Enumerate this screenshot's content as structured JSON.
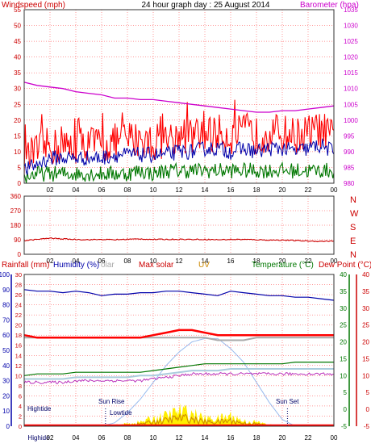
{
  "title": "24 hour graph day : 25 August 2014",
  "colors": {
    "wind": "#ff0000",
    "gust": "#0000aa",
    "avgwind": "#007700",
    "baro": "#cc00cc",
    "dir": "#cc0000",
    "hum": "#0000aa",
    "solar": "#aaaaaa",
    "maxsolar": "#ff0000",
    "uv": "#cc8800",
    "temp": "#007700",
    "dew": "#cc0000",
    "grid": "#ff0000",
    "pressure": "#cc00cc",
    "rain": "#ff0000",
    "solarcurve": "#99bbee",
    "sunfill": "#ffee00"
  },
  "panel1": {
    "left_label": "Windspeed (mph)",
    "right_label": "Barometer (hpa)",
    "y_left_ticks": [
      "0",
      "5",
      "10",
      "15",
      "20",
      "25",
      "30",
      "35",
      "40",
      "45",
      "50",
      "55"
    ],
    "y_right_ticks": [
      "980",
      "985",
      "990",
      "995",
      "1000",
      "1005",
      "1010",
      "1015",
      "1020",
      "1025",
      "1030",
      "1035"
    ],
    "x_ticks": [
      "02",
      "04",
      "06",
      "08",
      "10",
      "12",
      "14",
      "16",
      "18",
      "20",
      "22",
      "00"
    ]
  },
  "panel2": {
    "y_ticks": [
      "0",
      "90",
      "180",
      "270",
      "360"
    ],
    "compass": [
      "N",
      "W",
      "S",
      "E",
      "N"
    ],
    "x_ticks": [
      "02",
      "04",
      "06",
      "08",
      "10",
      "12",
      "14",
      "16",
      "18",
      "20",
      "22",
      "00"
    ]
  },
  "panel3": {
    "label_rain": "Rainfall (mm)",
    "label_humidity": "Humidity (%)",
    "label_solar": "olar",
    "label_maxsolar": "Max solar",
    "label_uv": "UV",
    "label_temp": "Temperature (°C)",
    "label_dew": "Dew Point (°C)",
    "y_hum_ticks": [
      "0",
      "10",
      "20",
      "30",
      "40",
      "50",
      "60",
      "70",
      "80",
      "90",
      "100"
    ],
    "y_rain_ticks": [
      "0",
      "2",
      "4",
      "6",
      "8",
      "10",
      "12",
      "14",
      "16",
      "18",
      "20",
      "22",
      "24",
      "26",
      "28",
      "30"
    ],
    "y_temp_ticks": [
      "-5",
      "0",
      "5",
      "10",
      "15",
      "20",
      "25",
      "30",
      "35",
      "40"
    ],
    "y_dew_ticks": [
      "-5",
      "0",
      "5",
      "10",
      "15",
      "20",
      "25",
      "30",
      "35",
      "40"
    ],
    "x_ticks": [
      "Highide",
      "02",
      "04",
      "06",
      "08",
      "10",
      "12",
      "14",
      "16",
      "18",
      "20",
      "22",
      "00"
    ],
    "ann_hightide": "Hightide",
    "ann_sunrise": "Sun Rise",
    "ann_lowtide": "Lowtide",
    "ann_sunset": "Sun Set"
  },
  "chart_data": [
    {
      "type": "line",
      "title": "24 hour graph day : 25 August 2014",
      "xlabel": "",
      "ylabel": "Windspeed (mph)",
      "ylim": [
        0,
        55
      ],
      "y2label": "Barometer (hpa)",
      "y2lim": [
        980,
        1035
      ],
      "x": [
        0,
        1,
        2,
        3,
        4,
        5,
        6,
        7,
        8,
        9,
        10,
        11,
        12,
        13,
        14,
        15,
        16,
        17,
        18,
        19,
        20,
        21,
        22,
        23,
        24
      ],
      "series": [
        {
          "name": "Windspeed (mph)",
          "axis": "left",
          "values": [
            7,
            10,
            12,
            11,
            12,
            13,
            12,
            13,
            14,
            14,
            13,
            14,
            15,
            15,
            15,
            16,
            15,
            16,
            15,
            16,
            16,
            15,
            16,
            17,
            14
          ]
        },
        {
          "name": "",
          "axis": "left",
          "values": [
            4,
            6,
            8,
            8,
            8,
            8,
            8,
            9,
            9,
            9,
            9,
            9,
            10,
            10,
            11,
            11,
            10,
            11,
            10,
            11,
            11,
            10,
            11,
            12,
            10
          ]
        },
        {
          "name": "",
          "axis": "left",
          "values": [
            2,
            3,
            3,
            3,
            3,
            3,
            3,
            3,
            3,
            4,
            3,
            4,
            4,
            4,
            4,
            4,
            4,
            4,
            4,
            4,
            4,
            4,
            4,
            4,
            4
          ]
        },
        {
          "name": "Barometer (hpa)",
          "axis": "right",
          "values": [
            1012,
            1011,
            1010.5,
            1010,
            1009,
            1008.5,
            1008,
            1007,
            1007,
            1006.5,
            1006.5,
            1006,
            1005.5,
            1005,
            1004.5,
            1004,
            1003.5,
            1003,
            1002.5,
            1002.5,
            1003,
            1003,
            1003.5,
            1004,
            1004.5
          ]
        }
      ]
    },
    {
      "type": "line",
      "title": "",
      "ylabel": "",
      "ylim": [
        0,
        360
      ],
      "x": [
        0,
        1,
        2,
        3,
        4,
        5,
        6,
        7,
        8,
        9,
        10,
        11,
        12,
        13,
        14,
        15,
        16,
        17,
        18,
        19,
        20,
        21,
        22,
        23,
        24
      ],
      "series": [
        {
          "name": "",
          "values": [
            85,
            92,
            100,
            95,
            92,
            90,
            92,
            90,
            93,
            95,
            92,
            92,
            93,
            92,
            92,
            90,
            92,
            92,
            90,
            88,
            88,
            85,
            82,
            80,
            82
          ]
        }
      ]
    },
    {
      "type": "line",
      "title": "",
      "x": [
        0,
        1,
        2,
        3,
        4,
        5,
        6,
        7,
        8,
        9,
        10,
        11,
        12,
        13,
        14,
        15,
        16,
        17,
        18,
        19,
        20,
        21,
        22,
        23,
        24
      ],
      "series": [
        {
          "name": "Humidity (%)",
          "axis": "humidity",
          "ylim": [
            0,
            100
          ],
          "values": [
            90,
            89,
            89,
            88,
            89,
            88,
            86,
            87,
            87,
            88,
            88,
            89,
            89,
            88,
            87,
            86,
            89,
            88,
            87,
            86,
            86,
            85,
            85,
            84,
            83
          ]
        },
        {
          "name": "Max solar",
          "axis": "rain",
          "ylim": [
            0,
            30
          ],
          "values": [
            18,
            17.5,
            17.5,
            17.5,
            17.5,
            17.5,
            17.5,
            17.5,
            17.5,
            17.5,
            18,
            18.5,
            19,
            19,
            18.5,
            18,
            18,
            18,
            18,
            18,
            18,
            18,
            18,
            18,
            18
          ]
        },
        {
          "name": "olar",
          "axis": "rain",
          "ylim": [
            0,
            30
          ],
          "values": [
            17.5,
            17.5,
            17.5,
            17.5,
            17.5,
            17.5,
            17.5,
            17.5,
            17.5,
            17.5,
            17.5,
            17.5,
            17.5,
            17.5,
            17.5,
            17,
            17,
            17,
            17.5,
            17.5,
            17.5,
            17.5,
            17.5,
            17.5,
            17.5
          ]
        },
        {
          "name": "Temperature (°C)",
          "axis": "temp",
          "ylim": [
            -5,
            40
          ],
          "values": [
            10,
            10.5,
            10.5,
            10.5,
            11,
            11,
            11,
            11,
            11,
            11,
            11.5,
            12,
            12.5,
            13,
            13.5,
            13.5,
            13.5,
            13.5,
            13.5,
            13.5,
            13.5,
            14,
            14,
            14,
            14
          ]
        },
        {
          "name": "Dew Point (°C)",
          "axis": "temp",
          "ylim": [
            -5,
            40
          ],
          "values": [
            8,
            8,
            8,
            8,
            8.5,
            8.5,
            8.5,
            8.5,
            8.5,
            8.5,
            9,
            9.5,
            10,
            10.5,
            10.5,
            10.5,
            10.5,
            10.5,
            10.5,
            10.5,
            10.5,
            10.5,
            10.5,
            10.5,
            10.5
          ]
        },
        {
          "name": "",
          "axis": "temp",
          "ylim": [
            -5,
            40
          ],
          "values": [
            9,
            9,
            9,
            9,
            9.5,
            9.5,
            9.5,
            9.5,
            9.5,
            10,
            10,
            10.5,
            11,
            11.5,
            11.5,
            11.5,
            12,
            12,
            12,
            12,
            12,
            12,
            12,
            12,
            12
          ]
        },
        {
          "name": "",
          "axis": "temp",
          "ylim": [
            -5,
            40
          ],
          "values": [
            -5,
            -5,
            -5,
            -5,
            -5,
            -5,
            -5,
            -4,
            -1,
            3,
            8,
            13,
            17,
            20,
            21,
            21,
            18,
            14,
            8,
            2,
            -3,
            -5,
            -5,
            -5,
            -5
          ]
        },
        {
          "name": "UV",
          "axis": "rain",
          "ylim": [
            0,
            30
          ],
          "values": [
            0,
            0,
            0,
            0,
            0,
            0,
            0,
            0.2,
            0.5,
            0.8,
            1.5,
            2,
            3,
            2.5,
            1.5,
            1.5,
            2,
            1,
            0.8,
            0.3,
            0,
            0,
            0,
            0,
            0
          ]
        },
        {
          "name": "Rainfall (mm)",
          "axis": "rain",
          "ylim": [
            0,
            30
          ],
          "values": [
            0,
            0,
            0,
            0,
            0,
            0,
            0,
            0,
            0,
            0,
            0,
            0,
            0,
            0,
            0,
            0,
            0,
            0,
            0,
            0,
            0,
            0,
            0,
            0,
            0
          ]
        }
      ]
    }
  ]
}
